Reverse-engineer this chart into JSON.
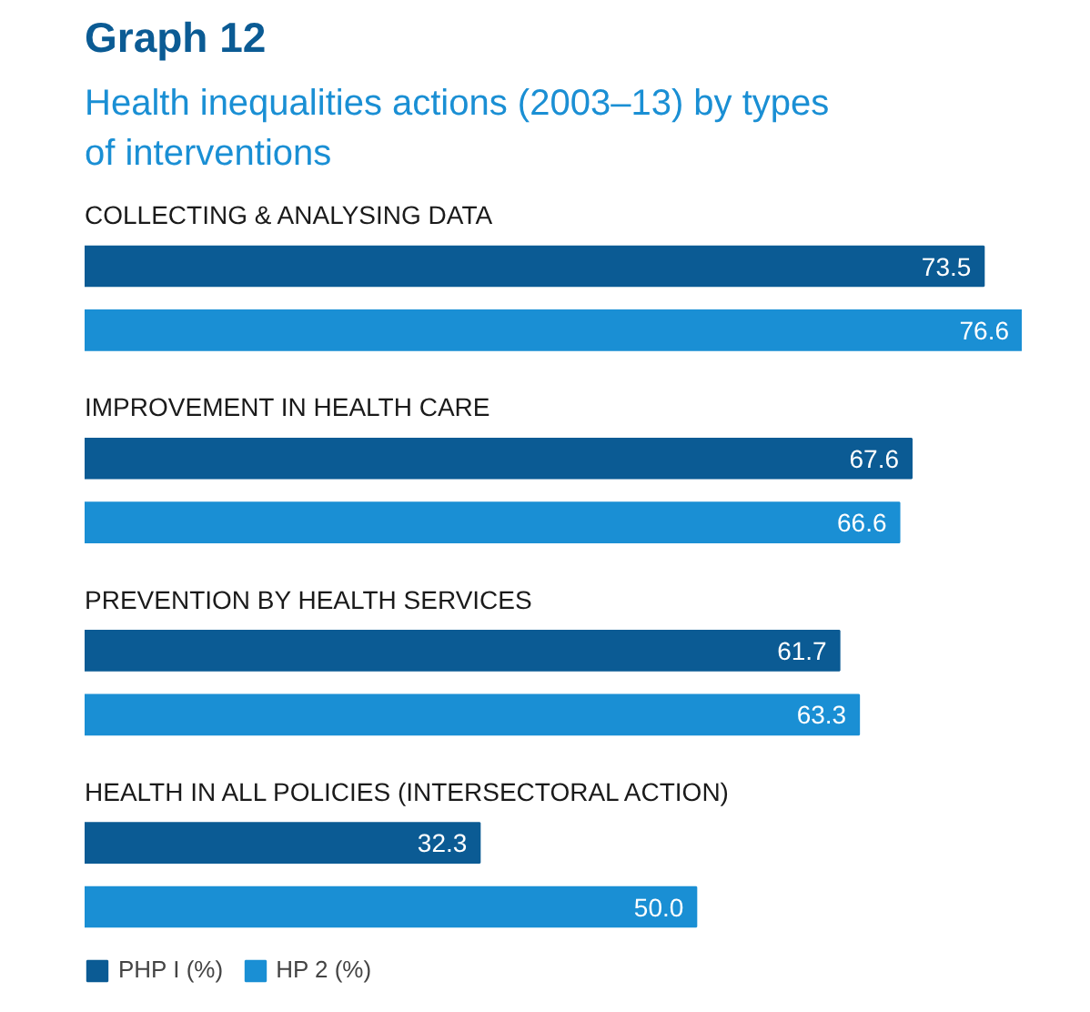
{
  "chart_data": {
    "type": "bar",
    "orientation": "horizontal",
    "title": "Graph 12",
    "subtitle": "Health inequalities actions (2003–13) by types\nof interventions",
    "categories": [
      "COLLECTING & ANALYSING DATA",
      "IMPROVEMENT IN HEALTH CARE",
      "PREVENTION BY HEALTH SERVICES",
      "HEALTH IN ALL POLICIES (INTERSECTORAL ACTION)"
    ],
    "series": [
      {
        "name": "PHP I (%)",
        "color": "#0b5b94",
        "values": [
          73.5,
          67.6,
          61.7,
          32.3
        ],
        "value_labels": [
          "73.5",
          "67.6",
          "61.7",
          "32.3"
        ]
      },
      {
        "name": "HP 2 (%)",
        "color": "#1a8fd4",
        "values": [
          76.6,
          66.6,
          63.3,
          50.0
        ],
        "value_labels": [
          "76.6",
          "66.6",
          "63.3",
          "50.0"
        ]
      }
    ],
    "legend": "bottom left",
    "grid": false
  }
}
